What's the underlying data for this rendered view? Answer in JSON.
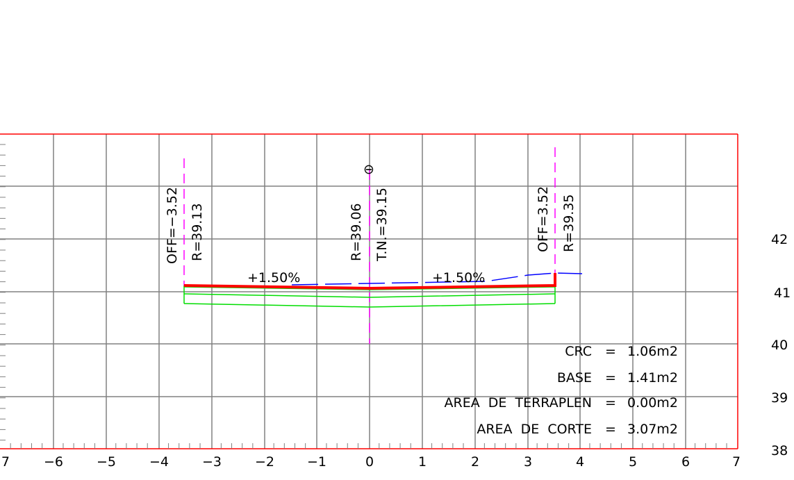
{
  "section": {
    "x_ticks": [
      "−7",
      "−6",
      "−5",
      "−4",
      "−3",
      "−2",
      "−1",
      "0",
      "1",
      "2",
      "3",
      "4",
      "5",
      "6",
      "7"
    ],
    "y_ticks": [
      "42",
      "41",
      "40",
      "39",
      "38"
    ],
    "left_edge": {
      "offset_label": "OFF=−3.52",
      "elev_label": "R=39.13"
    },
    "center": {
      "elev_label": "R=39.06",
      "tn_label": "T.N.=39.15",
      "symbol": "⊖"
    },
    "right_edge": {
      "offset_label": "OFF=3.52",
      "elev_label": "R=39.35"
    },
    "slope_left": "+1.50%",
    "slope_right": "+1.50%",
    "areas": [
      {
        "name": "CRC",
        "eq": "=",
        "value": "1.06m2"
      },
      {
        "name": "BASE",
        "eq": "=",
        "value": "1.41m2"
      },
      {
        "name": "AREA  DE  TERRAPLEN",
        "eq": "=",
        "value": "0.00m2"
      },
      {
        "name": "AREA  DE  CORTE",
        "eq": "=",
        "value": "3.07m2"
      }
    ]
  },
  "colors": {
    "frame": "#ff0000",
    "grid": "#808080",
    "subgrade": "#ff0000",
    "pavement_layers": "#00dd00",
    "ground_line": "#0000ff",
    "axis_marks": "#ff00ff"
  }
}
